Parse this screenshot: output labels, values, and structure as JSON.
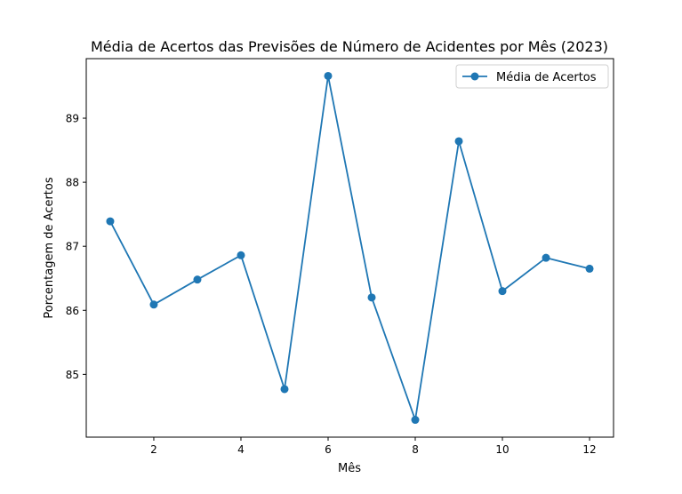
{
  "chart_data": {
    "type": "line",
    "title": "Média de Acertos das Previsões de Número de Acidentes por Mês (2023)",
    "xlabel": "Mês",
    "ylabel": "Porcentagem de Acertos",
    "x": [
      1,
      2,
      3,
      4,
      5,
      6,
      7,
      8,
      9,
      10,
      11,
      12
    ],
    "series": [
      {
        "name": "Média de Acertos",
        "color": "#1f77b4",
        "marker": "circle",
        "values": [
          87.39,
          86.09,
          86.48,
          86.86,
          84.77,
          89.66,
          86.2,
          84.29,
          88.64,
          86.3,
          86.82,
          86.65
        ]
      }
    ],
    "xlim": [
      0.45,
      12.55
    ],
    "ylim": [
      84.02,
      89.93
    ],
    "xticks": [
      2,
      4,
      6,
      8,
      10,
      12
    ],
    "yticks": [
      85,
      86,
      87,
      88,
      89
    ],
    "grid": false,
    "legend_position": "top-right"
  }
}
